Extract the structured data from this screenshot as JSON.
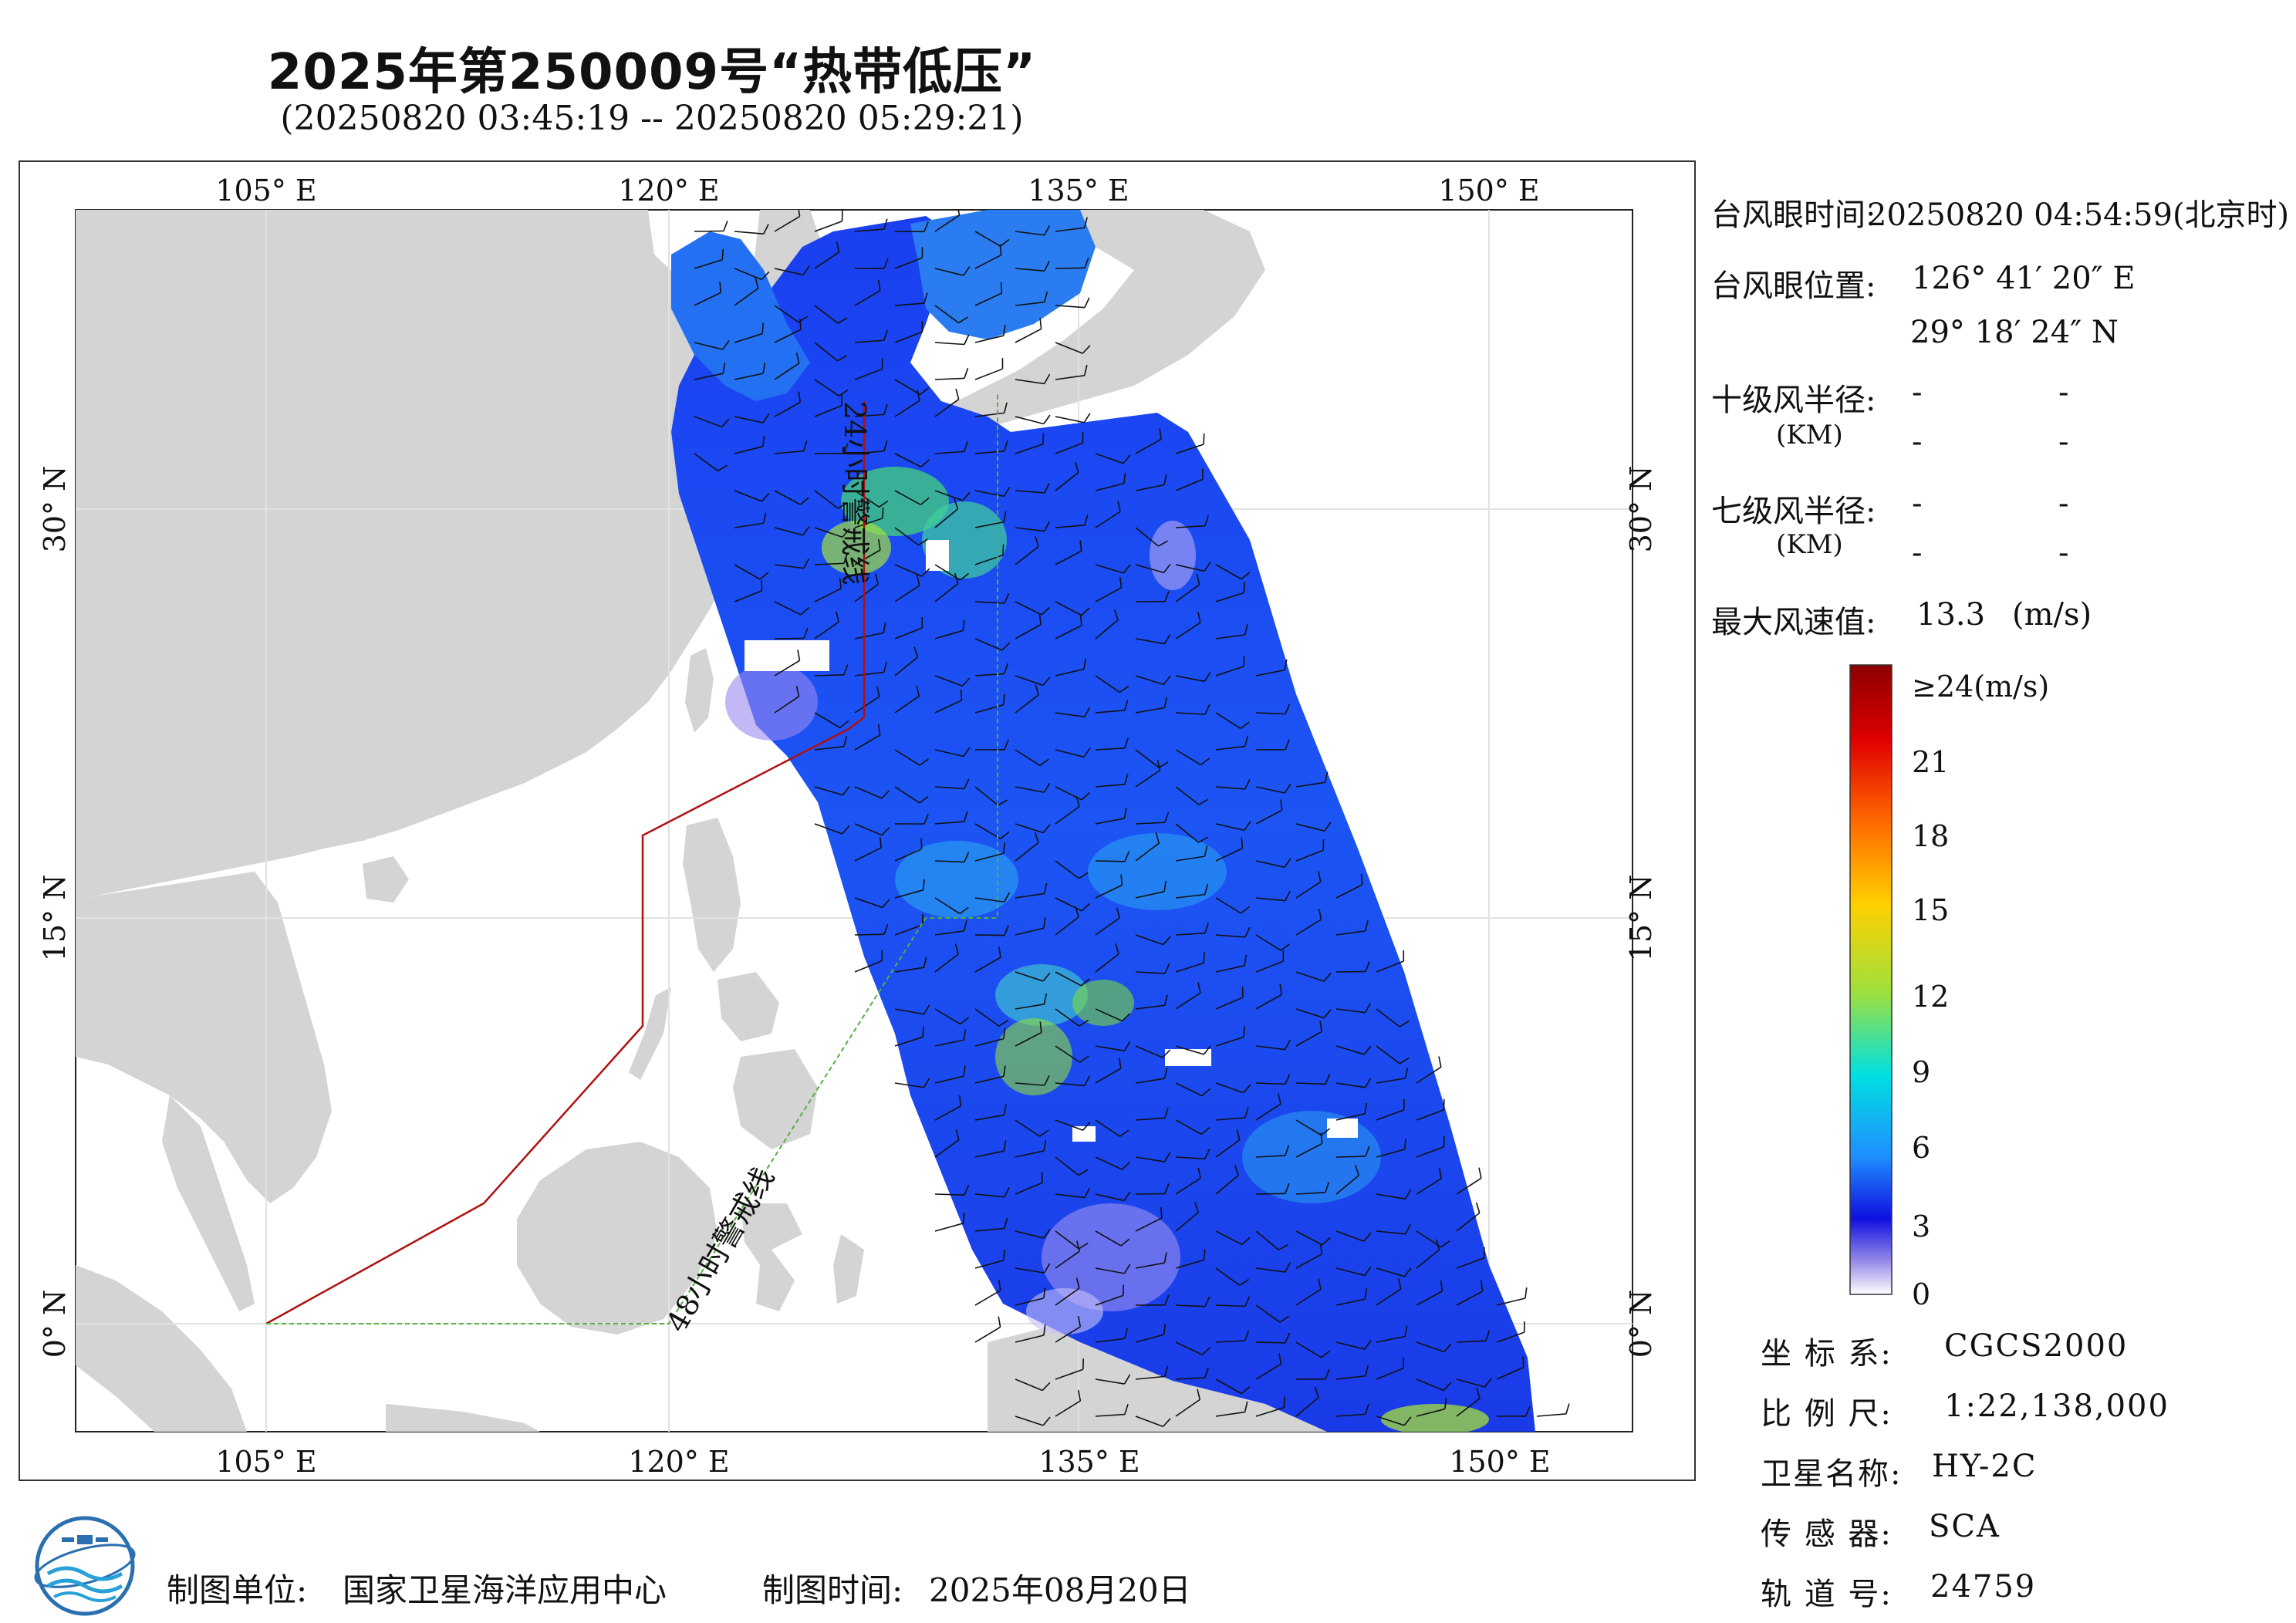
{
  "title": "2025年第250009号“热带低压”",
  "subtitle": "(20250820 03:45:19 -- 20250820 05:29:21)",
  "map": {
    "lon_ticks": [
      "105° E",
      "120° E",
      "135° E",
      "150° E"
    ],
    "lat_ticks": [
      "30° N",
      "15° N",
      "0° N"
    ],
    "warning_24h_label": "24小时警戒线",
    "warning_48h_label": "48小时警戒线",
    "colors": {
      "land": "#d4d4d4",
      "sea": "#ffffff",
      "line_24h": "#b01010",
      "line_48h": "#55b040",
      "grid": "#e4e4e4"
    }
  },
  "info": {
    "eye_time_label": "台风眼时间:",
    "eye_time_value": "20250820 04:54:59(北京时)",
    "eye_pos_label": "台风眼位置:",
    "eye_lon": "126° 41′ 20″ E",
    "eye_lat": "29° 18′ 24″ N",
    "r10_label": "十级风半径:",
    "r7_label": "七级风半径:",
    "km_unit": "(KM)",
    "dash": "-",
    "max_wind_label": "最大风速值:",
    "max_wind_value": "13.3",
    "max_wind_unit": "(m/s)"
  },
  "colorbar": {
    "labels": [
      "≥24(m/s)",
      "21",
      "18",
      "15",
      "12",
      "9",
      "6",
      "3",
      "0"
    ],
    "colors": [
      "#8b0000",
      "#e00000",
      "#ff6a00",
      "#ffd000",
      "#9fe03c",
      "#00e0e0",
      "#1e90ff",
      "#1010e0",
      "#ffffff"
    ]
  },
  "meta": {
    "crs_label": "坐 标 系:",
    "crs_value": "CGCS2000",
    "scale_label": "比 例 尺:",
    "scale_value": "1:22,138,000",
    "sat_label": "卫星名称:",
    "sat_value": "HY-2C",
    "sensor_label": "传 感 器:",
    "sensor_value": "SCA",
    "orbit_label": "轨 道 号:",
    "orbit_value": "24759"
  },
  "footer": {
    "unit_label": "制图单位:",
    "unit_value": "国家卫星海洋应用中心",
    "time_label": "制图时间:",
    "time_value": "2025年08月20日"
  }
}
